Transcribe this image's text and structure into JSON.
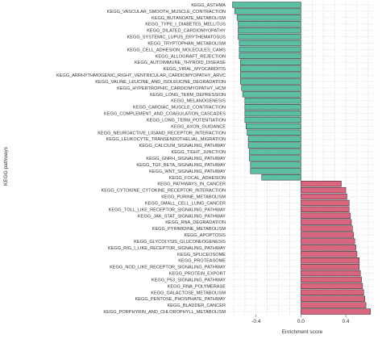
{
  "chart_data": {
    "type": "bar",
    "orientation": "horizontal",
    "xlabel": "Enrichment score",
    "ylabel": "KEGG pathways",
    "xlim": [
      -0.65,
      0.68
    ],
    "xticks": [
      -0.4,
      0.0,
      0.4
    ],
    "xtick_labels": [
      "-0.4",
      "0.0",
      "0.4"
    ],
    "grid": true,
    "colors": {
      "negative": "#5bbfa3",
      "positive": "#d9657f",
      "edge": "#222222",
      "grid": "#c8c8c8"
    },
    "categories": [
      "KEGG_ASTHMA",
      "KEGG_VASCULAR_SMOOTH_MUSCLE_CONTRACTION",
      "KEGG_BUTANOATE_METABOLISM",
      "KEGG_TYPE_I_DIABETES_MELLITUS",
      "KEGG_DILATED_CARDIOMYOPATHY",
      "KEGG_SYSTEMIC_LUPUS_ERYTHEMATOSUS",
      "KEGG_TRYPTOPHAN_METABOLISM",
      "KEGG_CELL_ADHESION_MOLECULES_CAMS",
      "KEGG_ALLOGRAFT_REJECTION",
      "KEGG_AUTOIMMUNE_THYROID_DISEASE",
      "KEGG_VIRAL_MYOCARDITIS",
      "KEGG_ARRHYTHMOGENIC_RIGHT_VENTRICULAR_CARDIOMYOPATHY_ARVC",
      "KEGG_VALINE_LEUCINE_AND_ISOLEUCINE_DEGRADATION",
      "KEGG_HYPERTROPHIC_CARDIOMYOPATHY_HCM",
      "KEGG_LONG_TERM_DEPRESSION",
      "KEGG_MELANOGENESIS",
      "KEGG_CARDIAC_MUSCLE_CONTRACTION",
      "KEGG_COMPLEMENT_AND_COAGULATION_CASCADES",
      "KEGG_LONG_TERM_POTENTIATION",
      "KEGG_AXON_GUIDANCE",
      "KEGG_NEUROACTIVE_LIGAND_RECEPTOR_INTERACTION",
      "KEGG_LEUKOCYTE_TRANSENDOTHELIAL_MIGRATION",
      "KEGG_CALCIUM_SIGNALING_PATHWAY",
      "KEGG_TIGHT_JUNCTION",
      "KEGG_GNRH_SIGNALING_PATHWAY",
      "KEGG_TGF_BETA_SIGNALING_PATHWAY",
      "KEGG_WNT_SIGNALING_PATHWAY",
      "KEGG_FOCAL_ADHESION",
      "KEGG_PATHWAYS_IN_CANCER",
      "KEGG_CYTOKINE_CYTOKINE_RECEPTOR_INTERACTION",
      "KEGG_PURINE_METABOLISM",
      "KEGG_SMALL_CELL_LUNG_CANCER",
      "KEGG_TOLL_LIKE_RECEPTOR_SIGNALING_PATHWAY",
      "KEGG_JAK_STAT_SIGNALING_PATHWAY",
      "KEGG_RNA_DEGRADATION",
      "KEGG_PYRIMIDINE_METABOLISM",
      "KEGG_APOPTOSIS",
      "KEGG_GLYCOLYSIS_GLUCONEOGENESIS",
      "KEGG_RIG_I_LIKE_RECEPTOR_SIGNALING_PATHWAY",
      "KEGG_SPLICEOSOME",
      "KEGG_PROTEASOME",
      "KEGG_NOD_LIKE_RECEPTOR_SIGNALING_PATHWAY",
      "KEGG_PROTEIN_EXPORT",
      "KEGG_P53_SIGNALING_PATHWAY",
      "KEGG_RNA_POLYMERASE",
      "KEGG_GALACTOSE_METABOLISM",
      "KEGG_PENTOSE_PHOSPHATE_PATHWAY",
      "KEGG_BLADDER_CANCER",
      "KEGG_PORPHYRIN_AND_CHLOROPHYLL_METABOLISM"
    ],
    "values": [
      -0.61,
      -0.59,
      -0.57,
      -0.56,
      -0.56,
      -0.56,
      -0.55,
      -0.55,
      -0.55,
      -0.54,
      -0.54,
      -0.54,
      -0.54,
      -0.53,
      -0.52,
      -0.5,
      -0.5,
      -0.5,
      -0.5,
      -0.49,
      -0.48,
      -0.47,
      -0.47,
      -0.46,
      -0.46,
      -0.45,
      -0.45,
      -0.35,
      0.36,
      0.4,
      0.41,
      0.43,
      0.43,
      0.44,
      0.45,
      0.46,
      0.47,
      0.48,
      0.49,
      0.5,
      0.52,
      0.52,
      0.53,
      0.54,
      0.55,
      0.56,
      0.57,
      0.58,
      0.62
    ]
  }
}
